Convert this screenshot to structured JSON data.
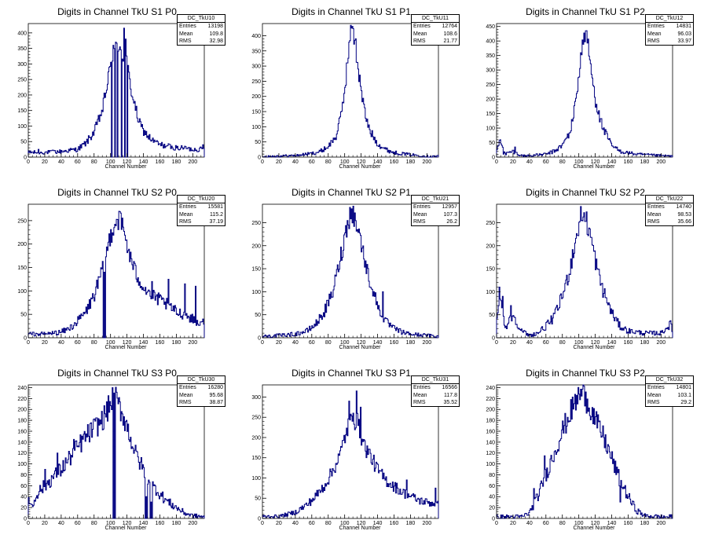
{
  "panels": [
    {
      "title": "Digits in Channel TkU S1 P0",
      "stats": {
        "name": "DC_TkU10",
        "entries": "13198",
        "mean": "109.8",
        "rms": "32.98"
      }
    },
    {
      "title": "Digits in Channel TkU S1 P1",
      "stats": {
        "name": "DC_TkU11",
        "entries": "12764",
        "mean": "108.6",
        "rms": "21.77"
      }
    },
    {
      "title": "Digits in Channel TkU S1 P2",
      "stats": {
        "name": "DC_TkU12",
        "entries": "14831",
        "mean": "96.03",
        "rms": "33.97"
      }
    },
    {
      "title": "Digits in Channel TkU S2 P0",
      "stats": {
        "name": "DC_TkU20",
        "entries": "15581",
        "mean": "115.2",
        "rms": "37.19"
      }
    },
    {
      "title": "Digits in Channel TkU S2 P1",
      "stats": {
        "name": "DC_TkU21",
        "entries": "12957",
        "mean": "107.3",
        "rms": "26.2"
      }
    },
    {
      "title": "Digits in Channel TkU S2 P2",
      "stats": {
        "name": "DC_TkU22",
        "entries": "14740",
        "mean": "98.53",
        "rms": "35.66"
      }
    },
    {
      "title": "Digits in Channel TkU S3 P0",
      "stats": {
        "name": "DC_TkU30",
        "entries": "16280",
        "mean": "95.68",
        "rms": "38.87"
      }
    },
    {
      "title": "Digits in Channel TkU S3 P1",
      "stats": {
        "name": "DC_TkU31",
        "entries": "16566",
        "mean": "117.8",
        "rms": "35.52"
      }
    },
    {
      "title": "Digits in Channel TkU S3 P2",
      "stats": {
        "name": "DC_TkU32",
        "entries": "14801",
        "mean": "103.1",
        "rms": "29.2"
      }
    }
  ],
  "labels": {
    "entries": "Entries",
    "mean": "Mean",
    "rms": "RMS",
    "xaxis": "Channel Number"
  },
  "style": {
    "line_color": "#000080",
    "axis_color": "#000000",
    "background": "#ffffff"
  },
  "chart_data": [
    {
      "type": "area",
      "title": "Digits in Channel TkU S1 P0",
      "xlabel": "Channel Number",
      "xlim": [
        0,
        214
      ],
      "ylim": [
        0,
        430
      ],
      "yticks": [
        0,
        50,
        100,
        150,
        200,
        250,
        300,
        350,
        400
      ],
      "xy_profile": [
        [
          0,
          15
        ],
        [
          20,
          15
        ],
        [
          40,
          18
        ],
        [
          60,
          25
        ],
        [
          70,
          45
        ],
        [
          80,
          80
        ],
        [
          90,
          150
        ],
        [
          95,
          220
        ],
        [
          100,
          290
        ],
        [
          103,
          340
        ],
        [
          106,
          345
        ],
        [
          110,
          360
        ],
        [
          115,
          330
        ],
        [
          120,
          300
        ],
        [
          125,
          220
        ],
        [
          130,
          160
        ],
        [
          135,
          110
        ],
        [
          140,
          85
        ],
        [
          150,
          55
        ],
        [
          160,
          40
        ],
        [
          180,
          30
        ],
        [
          200,
          25
        ],
        [
          214,
          25
        ]
      ],
      "spikes": [
        [
          101,
          0
        ],
        [
          103,
          360
        ],
        [
          105,
          0
        ],
        [
          108,
          0
        ],
        [
          111,
          355
        ],
        [
          113,
          0
        ],
        [
          116,
          415
        ],
        [
          118,
          380
        ],
        [
          120,
          0
        ],
        [
          117,
          0
        ],
        [
          2,
          20
        ],
        [
          12,
          25
        ],
        [
          30,
          22
        ],
        [
          155,
          50
        ],
        [
          175,
          30
        ],
        [
          190,
          35
        ],
        [
          212,
          40
        ]
      ]
    },
    {
      "type": "area",
      "title": "Digits in Channel TkU S1 P1",
      "xlabel": "Channel Number",
      "xlim": [
        0,
        214
      ],
      "ylim": [
        0,
        440
      ],
      "yticks": [
        0,
        50,
        100,
        150,
        200,
        250,
        300,
        350,
        400
      ],
      "xy_profile": [
        [
          0,
          2
        ],
        [
          40,
          5
        ],
        [
          60,
          12
        ],
        [
          70,
          18
        ],
        [
          80,
          35
        ],
        [
          90,
          70
        ],
        [
          95,
          130
        ],
        [
          100,
          220
        ],
        [
          104,
          330
        ],
        [
          107,
          400
        ],
        [
          109,
          420
        ],
        [
          112,
          390
        ],
        [
          115,
          320
        ],
        [
          120,
          220
        ],
        [
          125,
          140
        ],
        [
          130,
          90
        ],
        [
          140,
          45
        ],
        [
          150,
          25
        ],
        [
          160,
          15
        ],
        [
          180,
          8
        ],
        [
          200,
          3
        ],
        [
          214,
          2
        ]
      ],
      "spikes": [
        [
          108,
          425
        ],
        [
          113,
          390
        ],
        [
          118,
          270
        ]
      ]
    },
    {
      "type": "area",
      "title": "Digits in Channel TkU S1 P2",
      "xlabel": "Channel Number",
      "xlim": [
        0,
        214
      ],
      "ylim": [
        0,
        460
      ],
      "yticks": [
        0,
        50,
        100,
        150,
        200,
        250,
        300,
        350,
        400,
        450
      ],
      "xy_profile": [
        [
          0,
          25
        ],
        [
          5,
          60
        ],
        [
          10,
          10
        ],
        [
          20,
          20
        ],
        [
          30,
          5
        ],
        [
          40,
          5
        ],
        [
          60,
          10
        ],
        [
          70,
          20
        ],
        [
          80,
          40
        ],
        [
          90,
          90
        ],
        [
          95,
          170
        ],
        [
          100,
          280
        ],
        [
          104,
          380
        ],
        [
          108,
          430
        ],
        [
          111,
          390
        ],
        [
          115,
          300
        ],
        [
          120,
          200
        ],
        [
          125,
          140
        ],
        [
          130,
          95
        ],
        [
          140,
          40
        ],
        [
          150,
          20
        ],
        [
          170,
          10
        ],
        [
          200,
          5
        ],
        [
          214,
          3
        ]
      ],
      "spikes": [
        [
          2,
          40
        ],
        [
          4,
          60
        ],
        [
          8,
          10
        ],
        [
          22,
          35
        ],
        [
          40,
          5
        ],
        [
          108,
          435
        ],
        [
          124,
          160
        ]
      ]
    },
    {
      "type": "area",
      "title": "Digits in Channel TkU S2 P0",
      "xlabel": "Channel Number",
      "xlim": [
        0,
        214
      ],
      "ylim": [
        0,
        285
      ],
      "yticks": [
        0,
        50,
        100,
        150,
        200,
        250
      ],
      "xy_profile": [
        [
          0,
          8
        ],
        [
          20,
          8
        ],
        [
          40,
          12
        ],
        [
          50,
          20
        ],
        [
          60,
          35
        ],
        [
          70,
          55
        ],
        [
          80,
          90
        ],
        [
          90,
          140
        ],
        [
          95,
          180
        ],
        [
          100,
          220
        ],
        [
          105,
          245
        ],
        [
          110,
          255
        ],
        [
          115,
          235
        ],
        [
          120,
          200
        ],
        [
          125,
          165
        ],
        [
          130,
          140
        ],
        [
          140,
          110
        ],
        [
          150,
          90
        ],
        [
          160,
          80
        ],
        [
          170,
          70
        ],
        [
          180,
          55
        ],
        [
          190,
          50
        ],
        [
          200,
          40
        ],
        [
          214,
          25
        ]
      ],
      "spikes": [
        [
          91,
          0
        ],
        [
          92,
          140
        ],
        [
          93,
          0
        ],
        [
          110,
          270
        ],
        [
          150,
          120
        ],
        [
          170,
          125
        ],
        [
          190,
          115
        ],
        [
          203,
          110
        ],
        [
          212,
          40
        ]
      ]
    },
    {
      "type": "area",
      "title": "Digits in Channel TkU S2 P1",
      "xlabel": "Channel Number",
      "xlim": [
        0,
        214
      ],
      "ylim": [
        0,
        290
      ],
      "yticks": [
        0,
        50,
        100,
        150,
        200,
        250
      ],
      "xy_profile": [
        [
          0,
          3
        ],
        [
          20,
          5
        ],
        [
          40,
          8
        ],
        [
          55,
          15
        ],
        [
          65,
          30
        ],
        [
          75,
          55
        ],
        [
          85,
          95
        ],
        [
          92,
          150
        ],
        [
          98,
          200
        ],
        [
          103,
          245
        ],
        [
          107,
          270
        ],
        [
          111,
          265
        ],
        [
          116,
          240
        ],
        [
          122,
          190
        ],
        [
          128,
          140
        ],
        [
          135,
          100
        ],
        [
          140,
          70
        ],
        [
          150,
          35
        ],
        [
          160,
          20
        ],
        [
          170,
          12
        ],
        [
          180,
          8
        ],
        [
          200,
          5
        ],
        [
          214,
          3
        ]
      ],
      "spikes": [
        [
          108,
          280
        ],
        [
          146,
          100
        ]
      ]
    },
    {
      "type": "area",
      "title": "Digits in Channel TkU S2 P2",
      "xlabel": "Channel Number",
      "xlim": [
        0,
        214
      ],
      "ylim": [
        0,
        290
      ],
      "yticks": [
        0,
        50,
        100,
        150,
        200,
        250
      ],
      "xy_profile": [
        [
          0,
          30
        ],
        [
          5,
          100
        ],
        [
          10,
          20
        ],
        [
          20,
          50
        ],
        [
          30,
          15
        ],
        [
          40,
          5
        ],
        [
          50,
          10
        ],
        [
          60,
          25
        ],
        [
          70,
          45
        ],
        [
          80,
          90
        ],
        [
          88,
          140
        ],
        [
          95,
          200
        ],
        [
          100,
          245
        ],
        [
          105,
          270
        ],
        [
          110,
          250
        ],
        [
          115,
          215
        ],
        [
          120,
          170
        ],
        [
          125,
          130
        ],
        [
          130,
          100
        ],
        [
          140,
          55
        ],
        [
          150,
          25
        ],
        [
          160,
          15
        ],
        [
          180,
          10
        ],
        [
          200,
          10
        ],
        [
          212,
          30
        ],
        [
          214,
          10
        ]
      ],
      "spikes": [
        [
          3,
          110
        ],
        [
          7,
          90
        ],
        [
          17,
          70
        ],
        [
          102,
          285
        ],
        [
          212,
          30
        ]
      ]
    },
    {
      "type": "area",
      "title": "Digits in Channel TkU S3 P0",
      "xlabel": "Channel Number",
      "xlim": [
        0,
        214
      ],
      "ylim": [
        0,
        245
      ],
      "yticks": [
        0,
        20,
        40,
        60,
        80,
        100,
        120,
        140,
        160,
        180,
        200,
        220,
        240
      ],
      "xy_profile": [
        [
          0,
          40
        ],
        [
          5,
          20
        ],
        [
          10,
          45
        ],
        [
          20,
          60
        ],
        [
          30,
          75
        ],
        [
          40,
          90
        ],
        [
          50,
          110
        ],
        [
          60,
          130
        ],
        [
          70,
          150
        ],
        [
          80,
          165
        ],
        [
          90,
          180
        ],
        [
          95,
          195
        ],
        [
          100,
          210
        ],
        [
          104,
          225
        ],
        [
          108,
          215
        ],
        [
          115,
          190
        ],
        [
          120,
          170
        ],
        [
          125,
          145
        ],
        [
          130,
          120
        ],
        [
          140,
          90
        ],
        [
          150,
          65
        ],
        [
          160,
          45
        ],
        [
          170,
          30
        ],
        [
          180,
          20
        ],
        [
          190,
          10
        ],
        [
          200,
          5
        ],
        [
          214,
          3
        ]
      ],
      "spikes": [
        [
          103,
          0
        ],
        [
          104,
          230
        ],
        [
          105,
          0
        ],
        [
          142,
          0
        ],
        [
          143,
          40
        ],
        [
          144,
          0
        ],
        [
          148,
          0
        ],
        [
          149,
          30
        ],
        [
          150,
          0
        ],
        [
          152,
          60
        ],
        [
          20,
          90
        ],
        [
          35,
          120
        ],
        [
          55,
          145
        ]
      ]
    },
    {
      "type": "area",
      "title": "Digits in Channel TkU S3 P1",
      "xlabel": "Channel Number",
      "xlim": [
        0,
        214
      ],
      "ylim": [
        0,
        330
      ],
      "yticks": [
        0,
        50,
        100,
        150,
        200,
        250,
        300
      ],
      "xy_profile": [
        [
          0,
          5
        ],
        [
          20,
          5
        ],
        [
          40,
          15
        ],
        [
          55,
          35
        ],
        [
          65,
          55
        ],
        [
          75,
          80
        ],
        [
          85,
          115
        ],
        [
          95,
          160
        ],
        [
          100,
          200
        ],
        [
          105,
          230
        ],
        [
          110,
          245
        ],
        [
          115,
          240
        ],
        [
          120,
          205
        ],
        [
          125,
          175
        ],
        [
          130,
          160
        ],
        [
          140,
          120
        ],
        [
          150,
          95
        ],
        [
          160,
          80
        ],
        [
          170,
          65
        ],
        [
          180,
          55
        ],
        [
          190,
          45
        ],
        [
          200,
          40
        ],
        [
          214,
          35
        ]
      ],
      "spikes": [
        [
          105,
          290
        ],
        [
          110,
          260
        ],
        [
          114,
          315
        ],
        [
          119,
          275
        ],
        [
          175,
          95
        ],
        [
          210,
          75
        ]
      ]
    },
    {
      "type": "area",
      "title": "Digits in Channel TkU S3 P2",
      "xlabel": "Channel Number",
      "xlim": [
        0,
        214
      ],
      "ylim": [
        0,
        245
      ],
      "yticks": [
        0,
        20,
        40,
        60,
        80,
        100,
        120,
        140,
        160,
        180,
        200,
        220,
        240
      ],
      "xy_profile": [
        [
          0,
          3
        ],
        [
          20,
          3
        ],
        [
          30,
          3
        ],
        [
          40,
          10
        ],
        [
          50,
          40
        ],
        [
          60,
          80
        ],
        [
          70,
          120
        ],
        [
          80,
          160
        ],
        [
          90,
          195
        ],
        [
          95,
          210
        ],
        [
          100,
          225
        ],
        [
          105,
          230
        ],
        [
          110,
          215
        ],
        [
          115,
          200
        ],
        [
          120,
          180
        ],
        [
          130,
          150
        ],
        [
          140,
          110
        ],
        [
          150,
          70
        ],
        [
          160,
          40
        ],
        [
          170,
          15
        ],
        [
          180,
          5
        ],
        [
          200,
          3
        ],
        [
          214,
          3
        ]
      ],
      "spikes": [
        [
          45,
          55
        ],
        [
          58,
          115
        ],
        [
          100,
          228
        ],
        [
          108,
          232
        ],
        [
          150,
          30
        ],
        [
          155,
          55
        ]
      ]
    }
  ]
}
